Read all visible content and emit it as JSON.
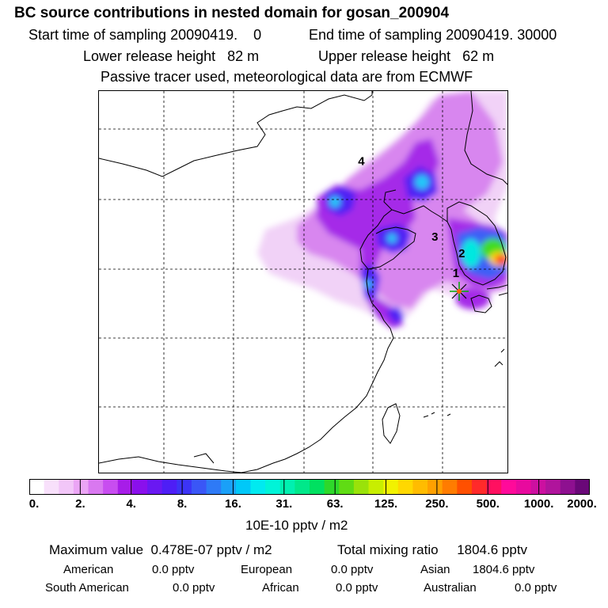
{
  "title": "BC  source contributions in nested domain for gosan_200904",
  "sampling": {
    "start_label": "Start time of sampling",
    "start_value": "20090419.    0",
    "end_label": "End time of sampling",
    "end_value": "20090419. 30000"
  },
  "release": {
    "lower_label": "Lower release height",
    "lower_value": "82 m",
    "upper_label": "Upper release height",
    "upper_value": "62 m"
  },
  "note": "Passive tracer used, meteorological data are from ECMWF",
  "map": {
    "markers": [
      {
        "label": "1",
        "lon": 130.3,
        "lat": 33.6
      },
      {
        "label": "2",
        "lon": 130.8,
        "lat": 35.0
      },
      {
        "label": "3",
        "lon": 128.5,
        "lat": 36.2
      },
      {
        "label": "4",
        "lon": 122.2,
        "lat": 41.6
      }
    ],
    "receptor_symbol": "star",
    "colors": {
      "coast": "#000000",
      "grid": "#000000",
      "receptor": "#00aa00"
    }
  },
  "colorbar": {
    "tick_labels": [
      "0.",
      "2.",
      "4.",
      "8.",
      "16.",
      "31.",
      "63.",
      "125.",
      "250.",
      "500.",
      "1000.",
      "2000."
    ],
    "colors": [
      "#ffffff",
      "#f8e0fb",
      "#f2c6f8",
      "#eba5f5",
      "#d978f0",
      "#c84df0",
      "#a71de8",
      "#8a10ec",
      "#6a18f2",
      "#4e1ef6",
      "#3c34f6",
      "#3a56f6",
      "#2e7af6",
      "#1aa0f8",
      "#00c8f8",
      "#00eaf0",
      "#00f4d8",
      "#00f0b0",
      "#00e88a",
      "#00e060",
      "#2ed82a",
      "#60dc14",
      "#9ae20a",
      "#c8ee00",
      "#f2f200",
      "#ffd800",
      "#ffbc00",
      "#ffa000",
      "#ff7c00",
      "#ff5000",
      "#ff2a2a",
      "#ff1060",
      "#ff0a9a",
      "#e80a9e",
      "#cc10a0",
      "#b0149c",
      "#8e1090",
      "#6a0878"
    ],
    "units": "10E-10 pptv / m2"
  },
  "summary": {
    "max_label": "Maximum value",
    "max_value": "0.478E-07 pptv / m2",
    "total_label": "Total mixing ratio",
    "total_value": "1804.6 pptv"
  },
  "sources": [
    {
      "name": "American",
      "value": "0.0 pptv"
    },
    {
      "name": "European",
      "value": "0.0 pptv"
    },
    {
      "name": "Asian",
      "value": "1804.6 pptv"
    },
    {
      "name": "South American",
      "value": "0.0 pptv"
    },
    {
      "name": "African",
      "value": "0.0 pptv"
    },
    {
      "name": "Australian",
      "value": "0.0 pptv"
    }
  ]
}
